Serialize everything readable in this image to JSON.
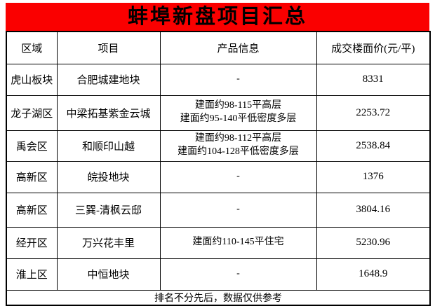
{
  "title": "蚌埠新盘项目汇总",
  "table": {
    "headers": [
      "区域",
      "项目",
      "产品信息",
      "成交楼面价(元/平)"
    ],
    "rows": [
      {
        "region": "虎山板块",
        "project": "合肥城建地块",
        "info": [
          "-"
        ],
        "price": "8331"
      },
      {
        "region": "龙子湖区",
        "project": "中梁拓基紫金云城",
        "info": [
          "建面约98-115平高层",
          "建面约95-140平低密度多层"
        ],
        "price": "2253.72"
      },
      {
        "region": "禹会区",
        "project": "和顺印山越",
        "info": [
          "建面约98-112平高层",
          "建面约104-128平低密度多层"
        ],
        "price": "2538.84"
      },
      {
        "region": "高新区",
        "project": "皖投地块",
        "info": [
          "-"
        ],
        "price": "1376"
      },
      {
        "region": "高新区",
        "project": "三巽-清枫云邸",
        "info": [
          "-"
        ],
        "price": "3804.16"
      },
      {
        "region": "经开区",
        "project": "万兴花丰里",
        "info": [
          "建面约110-145平住宅"
        ],
        "price": "5230.96"
      },
      {
        "region": "淮上区",
        "project": "中恒地块",
        "info": [
          "-"
        ],
        "price": "1648.9"
      }
    ],
    "footer": "排名不分先后，数据仅供参考"
  },
  "colors": {
    "banner": "#fa0000",
    "border": "#000000",
    "text": "#000000",
    "bg": "#ffffff"
  }
}
